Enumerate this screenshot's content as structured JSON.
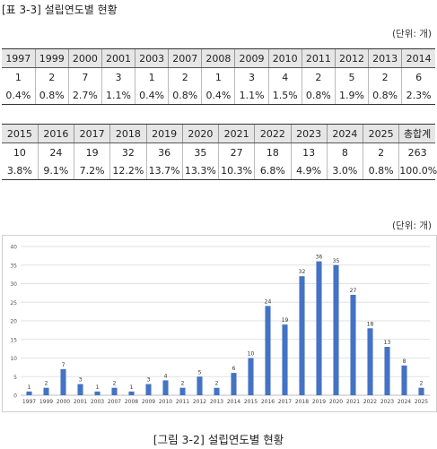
{
  "table_caption": "[표 3-3] 설립연도별 현황",
  "unit_label": "(단위: 개)",
  "figure_caption": "[그림 3-2] 설립연도별 현황",
  "table1": {
    "years": [
      "1997",
      "1999",
      "2000",
      "2001",
      "2003",
      "2007",
      "2008",
      "2009",
      "2010",
      "2011",
      "2012",
      "2013",
      "2014"
    ],
    "counts": [
      "1",
      "2",
      "7",
      "3",
      "1",
      "2",
      "1",
      "3",
      "4",
      "2",
      "5",
      "2",
      "6"
    ],
    "percents": [
      "0.4%",
      "0.8%",
      "2.7%",
      "1.1%",
      "0.4%",
      "0.8%",
      "0.4%",
      "1.1%",
      "1.5%",
      "0.8%",
      "1.9%",
      "0.8%",
      "2.3%"
    ]
  },
  "table2": {
    "years": [
      "2015",
      "2016",
      "2017",
      "2018",
      "2019",
      "2020",
      "2021",
      "2022",
      "2023",
      "2024",
      "2025",
      "총합계"
    ],
    "counts": [
      "10",
      "24",
      "19",
      "32",
      "36",
      "35",
      "27",
      "18",
      "13",
      "8",
      "2",
      "263"
    ],
    "percents": [
      "3.8%",
      "9.1%",
      "7.2%",
      "12.2%",
      "13.7%",
      "13.3%",
      "10.3%",
      "6.8%",
      "4.9%",
      "3.0%",
      "0.8%",
      "100.0%"
    ]
  },
  "chart_data": {
    "type": "bar",
    "categories": [
      "1997",
      "1999",
      "2000",
      "2001",
      "2003",
      "2007",
      "2008",
      "2009",
      "2010",
      "2011",
      "2012",
      "2013",
      "2014",
      "2015",
      "2016",
      "2017",
      "2018",
      "2019",
      "2020",
      "2021",
      "2022",
      "2023",
      "2024",
      "2025"
    ],
    "values": [
      1,
      2,
      7,
      3,
      1,
      2,
      1,
      3,
      4,
      2,
      5,
      2,
      6,
      10,
      24,
      19,
      32,
      36,
      35,
      27,
      18,
      13,
      8,
      2
    ],
    "ylim": [
      0,
      40
    ],
    "yticks": [
      0,
      5,
      10,
      15,
      20,
      25,
      30,
      35,
      40
    ],
    "grid": true,
    "data_labels": true,
    "bar_color": "#4472c4"
  }
}
